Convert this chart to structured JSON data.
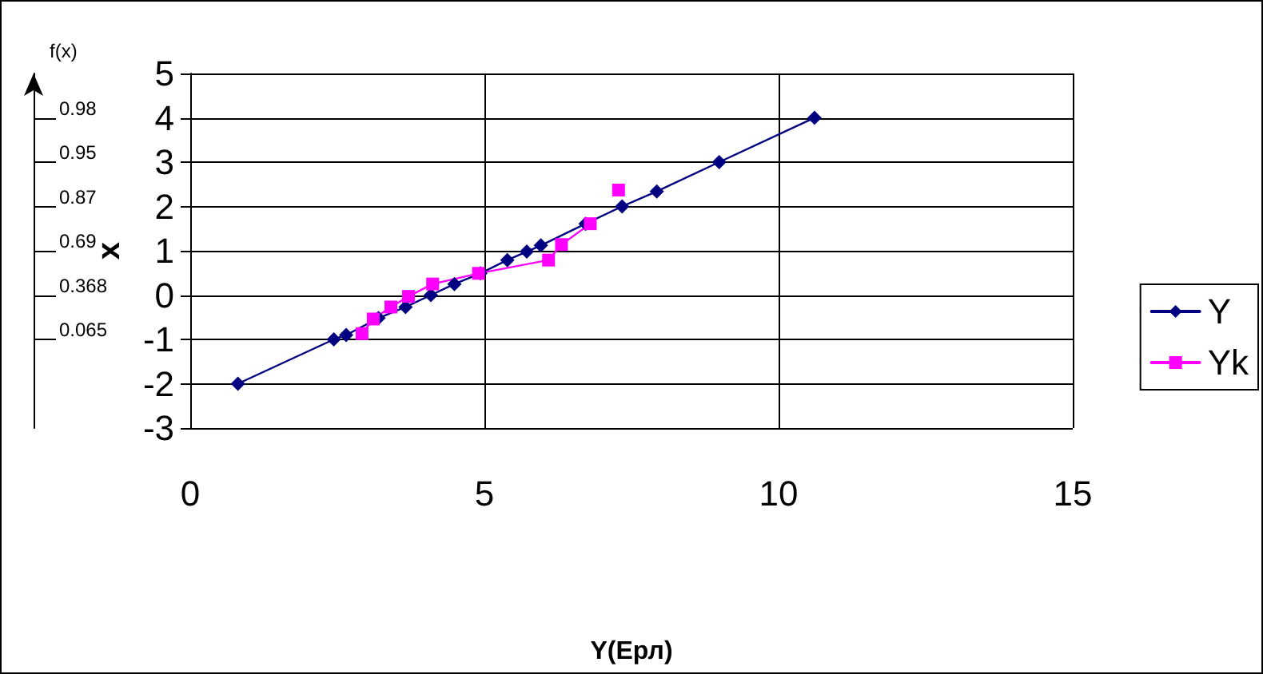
{
  "chart_data": {
    "type": "line",
    "xlabel": "Y(Ерл)",
    "ylabel": "x",
    "y2label": "f(x)",
    "xlim": [
      0,
      15
    ],
    "xticks": [
      0,
      5,
      10,
      15
    ],
    "ylim": [
      -3,
      5
    ],
    "yticks": [
      -3,
      -2,
      -1,
      0,
      1,
      2,
      3,
      4,
      5
    ],
    "annotations": [
      "0.065",
      "0.368",
      "0.69",
      "0.87",
      "0.95",
      "0.98"
    ],
    "grid": true,
    "legend": "right",
    "line_style": "solid",
    "series": [
      {
        "name": "Y",
        "color": "#000080",
        "marker": "diamond",
        "x": [
          0.81,
          2.44,
          2.65,
          3.2,
          3.66,
          4.09,
          4.49,
          4.93,
          5.39,
          5.72,
          5.96,
          6.72,
          7.34,
          7.93,
          8.99,
          10.61
        ],
        "values": [
          -2.0,
          -1.0,
          -0.9,
          -0.52,
          -0.27,
          0.0,
          0.25,
          0.49,
          0.79,
          0.98,
          1.12,
          1.61,
          2.0,
          2.34,
          3.0,
          4.0
        ]
      },
      {
        "name": "Yk",
        "color": "#ff00ff",
        "marker": "square",
        "x": [
          2.92,
          3.11,
          3.41,
          3.71,
          4.12,
          4.9,
          6.09,
          6.31,
          6.8,
          7.0,
          7.28
        ],
        "values": [
          -0.87,
          -0.54,
          -0.27,
          -0.03,
          0.25,
          0.49,
          0.79,
          1.14,
          1.61,
          null,
          2.37
        ]
      }
    ]
  }
}
